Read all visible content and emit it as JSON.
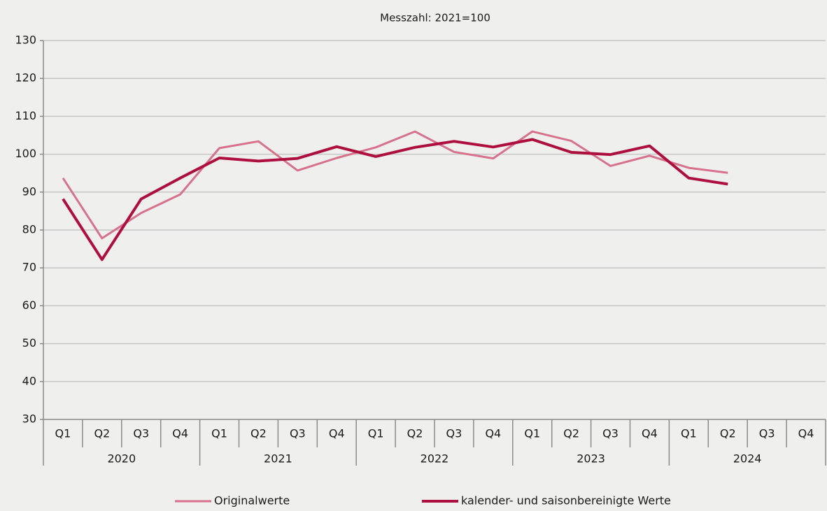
{
  "chart_data": {
    "type": "line",
    "subtitle": "Messzahl: 2021=100",
    "categories": [
      "Q1",
      "Q2",
      "Q3",
      "Q4",
      "Q1",
      "Q2",
      "Q3",
      "Q4",
      "Q1",
      "Q2",
      "Q3",
      "Q4",
      "Q1",
      "Q2",
      "Q3",
      "Q4",
      "Q1",
      "Q2",
      "Q3",
      "Q4"
    ],
    "years": [
      "2020",
      "2021",
      "2022",
      "2023",
      "2024"
    ],
    "series": [
      {
        "name": "Originalwerte",
        "color": "#d6728c",
        "width": 3,
        "values": [
          93.7,
          77.8,
          84.5,
          89.4,
          101.6,
          103.4,
          95.7,
          99.0,
          101.8,
          106.0,
          100.6,
          98.9,
          106.0,
          103.5,
          96.9,
          99.6,
          96.4,
          95.1,
          null,
          null
        ]
      },
      {
        "name": "kalender- und saisonbereinigte Werte",
        "color": "#ad0f3e",
        "width": 4,
        "values": [
          88.2,
          72.2,
          88.2,
          93.7,
          99.0,
          98.2,
          98.9,
          102.0,
          99.4,
          101.8,
          103.4,
          101.9,
          103.9,
          100.5,
          99.9,
          102.2,
          93.7,
          92.1,
          null,
          null
        ]
      }
    ],
    "ylim": [
      30,
      130
    ],
    "yticks": [
      30,
      40,
      50,
      60,
      70,
      80,
      90,
      100,
      110,
      120,
      130
    ],
    "grid": true
  }
}
